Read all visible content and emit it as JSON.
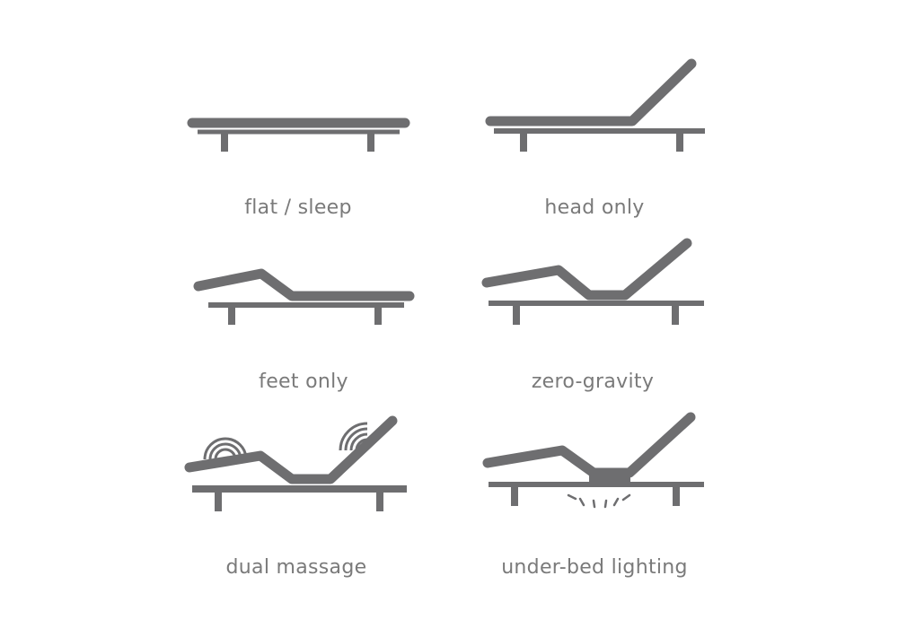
{
  "positions": [
    {
      "id": "flat",
      "label": "flat / sleep"
    },
    {
      "id": "head",
      "label": "head only"
    },
    {
      "id": "feet",
      "label": "feet only"
    },
    {
      "id": "zero",
      "label": "zero-gravity"
    },
    {
      "id": "massage",
      "label": "dual massage"
    },
    {
      "id": "lighting",
      "label": "under-bed lighting"
    }
  ],
  "colors": {
    "icon": "#6e6e70",
    "text": "#7a7a7a",
    "background": "#ffffff"
  }
}
